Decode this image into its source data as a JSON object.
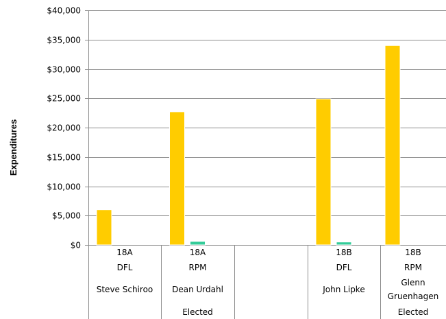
{
  "chart_data": {
    "type": "bar",
    "ylabel": "Expenditures",
    "ylim": [
      0,
      40000
    ],
    "yticks": [
      "$0",
      "$5,000",
      "$10,000",
      "$15,000",
      "$20,000",
      "$25,000",
      "$30,000",
      "$35,000",
      "$40,000"
    ],
    "grid": true,
    "series_colors": [
      "#FFCC00",
      "#33CC99"
    ],
    "categories": [
      {
        "district": "18A",
        "party": "DFL",
        "name": "Steve Schiroo",
        "name2": "",
        "status": ""
      },
      {
        "district": "18A",
        "party": "RPM",
        "name": "Dean Urdahl",
        "name2": "",
        "status": "Elected"
      },
      {
        "district": "",
        "party": "",
        "name": "",
        "name2": "",
        "status": ""
      },
      {
        "district": "18B",
        "party": "DFL",
        "name": "John Lipke",
        "name2": "",
        "status": ""
      },
      {
        "district": "18B",
        "party": "RPM",
        "name": "Glenn",
        "name2": "Gruenhagen",
        "status": "Elected"
      }
    ],
    "series": [
      {
        "values": [
          6000,
          22700,
          null,
          24900,
          34000
        ]
      },
      {
        "values": [
          0,
          600,
          null,
          500,
          0
        ]
      }
    ]
  }
}
